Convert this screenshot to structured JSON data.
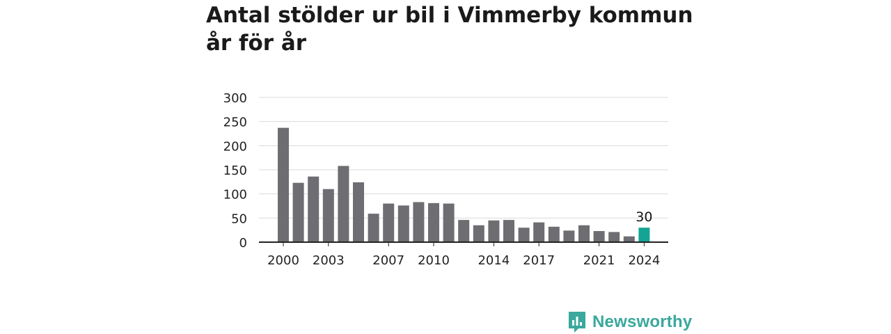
{
  "colors": {
    "bar": "#6e6d72",
    "highlight": "#14a394",
    "grid": "#d9d9d9",
    "axis": "#222222",
    "brand": "#3aa89c"
  },
  "brand": {
    "name": "Newsworthy",
    "icon": "newsworthy-logo-icon"
  },
  "chart_data": {
    "type": "bar",
    "title": "Antal stölder ur bil i Vimmerby kommun år för år",
    "xlabel": "",
    "ylabel": "",
    "ylim": [
      0,
      300
    ],
    "yticks": [
      0,
      50,
      100,
      150,
      200,
      250,
      300
    ],
    "grid": true,
    "categories": [
      2000,
      2001,
      2002,
      2003,
      2004,
      2005,
      2006,
      2007,
      2008,
      2009,
      2010,
      2011,
      2012,
      2013,
      2014,
      2015,
      2016,
      2017,
      2018,
      2019,
      2020,
      2021,
      2022,
      2023,
      2024
    ],
    "values": [
      237,
      123,
      136,
      110,
      158,
      124,
      59,
      80,
      76,
      83,
      81,
      80,
      46,
      35,
      45,
      46,
      30,
      41,
      32,
      24,
      35,
      23,
      21,
      12,
      30
    ],
    "xtick_labels": [
      "2000",
      "2003",
      "2007",
      "2010",
      "2014",
      "2017",
      "2021",
      "2024"
    ],
    "highlight_category": 2024,
    "highlight_label": "30"
  }
}
